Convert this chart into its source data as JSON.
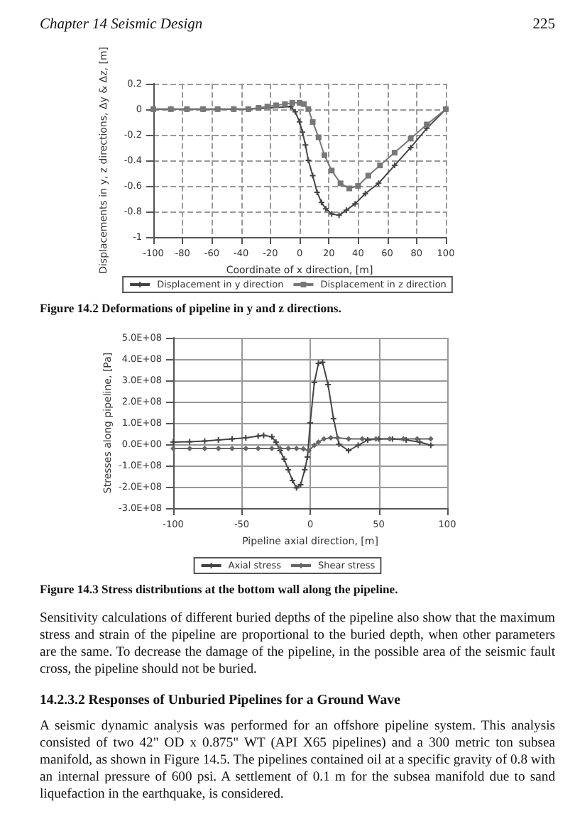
{
  "chart_data": [
    {
      "type": "line",
      "xlabel": "Coordinate of x direction, [m]",
      "ylabel": "Displacements in y, z directions, Δy & Δz, [m]",
      "annotations": [
        "Chapter 14 Seismic Design",
        "225",
        "Figure 14.2 Deformations of pipeline in y and z directions."
      ],
      "series": [
        {
          "name": "Displacement in y direction",
          "color": "#444444",
          "marker": "cross",
          "x": [
            -100,
            -88,
            -77,
            -66,
            -56,
            -45,
            -35,
            -6,
            -3,
            0,
            2,
            4,
            6,
            9,
            12,
            15,
            18,
            22,
            27,
            32,
            38,
            45,
            54,
            65,
            76,
            87,
            100
          ],
          "values": [
            0,
            0,
            0,
            0,
            0,
            0,
            0,
            0.02,
            -0.02,
            -0.1,
            -0.18,
            -0.28,
            -0.4,
            -0.52,
            -0.65,
            -0.73,
            -0.78,
            -0.82,
            -0.83,
            -0.79,
            -0.74,
            -0.66,
            -0.58,
            -0.44,
            -0.3,
            -0.15,
            0
          ]
        },
        {
          "name": "Displacement in z direction",
          "color": "#777777",
          "marker": "square",
          "x": [
            -100,
            -88,
            -77,
            -66,
            -56,
            -45,
            -35,
            -28,
            -22,
            -16,
            -10,
            -5,
            0,
            3,
            6,
            9,
            13,
            17,
            22,
            28,
            34,
            40,
            47,
            55,
            65,
            76,
            87,
            100
          ],
          "values": [
            0,
            0,
            0,
            0,
            0,
            0,
            0,
            0.01,
            0.02,
            0.03,
            0.04,
            0.05,
            0.05,
            0.04,
            0,
            -0.1,
            -0.22,
            -0.36,
            -0.48,
            -0.58,
            -0.62,
            -0.6,
            -0.52,
            -0.44,
            -0.34,
            -0.23,
            -0.12,
            0
          ]
        }
      ],
      "xlim": [
        -100,
        100
      ],
      "xticks": [
        -100,
        -80,
        -60,
        -40,
        -20,
        0,
        20,
        40,
        60,
        80,
        100
      ],
      "ylim": [
        -1,
        0.2
      ],
      "yticks": [
        -1,
        -0.8,
        -0.6,
        -0.4,
        -0.2,
        0,
        0.2
      ],
      "grid": true,
      "legend": "bottom"
    },
    {
      "type": "line",
      "xlabel": "Pipeline axial direction, [m]",
      "ylabel": "Stresses along pipeline, [Pa]",
      "annotations": [
        "Figure 14.3 Stress distributions at the bottom wall along the pipeline.",
        "Sensitivity calculations of different buried depths of the pipeline also show that the maximum stress and strain of the pipeline are proportional to the buried depth, when other parameters are the same. To decrease the damage of the pipeline, in the possible area of the seismic fault cross, the pipeline should not be buried.",
        "14.2.3.2 Responses of Unburied Pipelines for a Ground Wave",
        "A seismic dynamic analysis was performed for an offshore pipeline system. This analysis consisted of two 42\" OD x 0.875\" WT (API X65 pipelines) and a 300 metric ton subsea manifold, as shown in Figure 14.5. The pipelines contained oil at a specific gravity of 0.8 with an internal pressure of 600 psi.  A settlement of 0.1 m for the subsea manifold due to sand liquefaction in the earthquake, is considered."
      ],
      "series": [
        {
          "name": "Axial stress",
          "color": "#444444",
          "marker": "cross",
          "x": [
            -100,
            -88,
            -77,
            -67,
            -57,
            -47,
            -38,
            -34,
            -28,
            -25,
            -22,
            -19,
            -16,
            -13,
            -10,
            -7,
            -4,
            -2,
            0,
            3,
            6,
            9,
            13,
            17,
            21,
            28,
            35,
            42,
            50,
            60,
            70,
            80,
            88
          ],
          "values": [
            10000000.0,
            12000000.0,
            15000000.0,
            20000000.0,
            25000000.0,
            30000000.0,
            38000000.0,
            42000000.0,
            35000000.0,
            10000000.0,
            -30000000.0,
            -70000000.0,
            -120000000.0,
            -170000000.0,
            -205000000.0,
            -190000000.0,
            -120000000.0,
            -60000000.0,
            100000000.0,
            290000000.0,
            380000000.0,
            385000000.0,
            280000000.0,
            120000000.0,
            0,
            -30000000.0,
            -5000000.0,
            20000000.0,
            25000000.0,
            25000000.0,
            20000000.0,
            10000000.0,
            -5000000.0
          ]
        },
        {
          "name": "Shear stress",
          "color": "#666666",
          "marker": "diamond",
          "x": [
            -100,
            -88,
            -77,
            -67,
            -57,
            -47,
            -38,
            -28,
            -22,
            -16,
            -10,
            -5,
            -1,
            3,
            6,
            10,
            15,
            20,
            28,
            38,
            48,
            58,
            68,
            78,
            88
          ],
          "values": [
            -20000000.0,
            -20000000.0,
            -20000000.0,
            -20000000.0,
            -20000000.0,
            -20000000.0,
            -20000000.0,
            -20000000.0,
            -20000000.0,
            -20000000.0,
            -20000000.0,
            -22000000.0,
            -30000000.0,
            -5000000.0,
            10000000.0,
            25000000.0,
            30000000.0,
            30000000.0,
            25000000.0,
            25000000.0,
            25000000.0,
            25000000.0,
            25000000.0,
            25000000.0,
            25000000.0
          ]
        }
      ],
      "xlim": [
        -100,
        100
      ],
      "xticks": [
        -100,
        -50,
        0,
        50,
        100
      ],
      "ylim": [
        -300000000.0,
        500000000.0
      ],
      "yticks": [
        {
          "value": -300000000.0,
          "label": "-3.0E+08"
        },
        {
          "value": -200000000.0,
          "label": "-2.0E+08"
        },
        {
          "value": -100000000.0,
          "label": "-1.0E+08"
        },
        {
          "value": 0,
          "label": "0.0E+00"
        },
        {
          "value": 100000000.0,
          "label": "1.0E+08"
        },
        {
          "value": 200000000.0,
          "label": "2.0E+08"
        },
        {
          "value": 300000000.0,
          "label": "3.0E+08"
        },
        {
          "value": 400000000.0,
          "label": "4.0E+08"
        },
        {
          "value": 500000000.0,
          "label": "5.0E+08"
        }
      ],
      "grid": true,
      "legend": "bottom"
    }
  ]
}
